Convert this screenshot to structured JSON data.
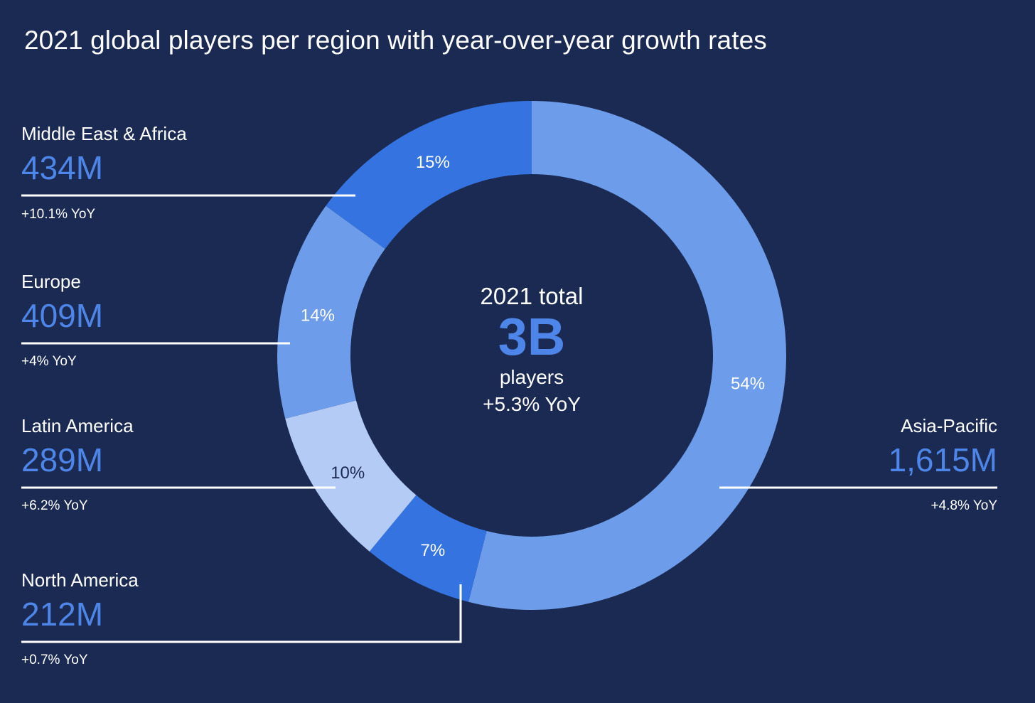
{
  "chart_data": {
    "type": "pie",
    "subtype": "donut",
    "title": "2021 global players per region with year-over-year growth rates",
    "start": "top",
    "direction": "clockwise",
    "center": {
      "label": "2021 total",
      "value": "3B",
      "unit": "players",
      "yoy": "+5.3% YoY"
    },
    "slices": [
      {
        "region": "Asia-Pacific",
        "share": 54,
        "share_label": "54%",
        "players": "1,615M",
        "players_millions": 1615,
        "yoy": "+4.8% YoY",
        "yoy_pct": 4.8,
        "color": "#6d9cea",
        "label_color": "#ffffff"
      },
      {
        "region": "North America",
        "share": 7,
        "share_label": "7%",
        "players": "212M",
        "players_millions": 212,
        "yoy": "+0.7% YoY",
        "yoy_pct": 0.7,
        "color": "#3574e0",
        "label_color": "#ffffff"
      },
      {
        "region": "Latin America",
        "share": 10,
        "share_label": "10%",
        "players": "289M",
        "players_millions": 289,
        "yoy": "+6.2% YoY",
        "yoy_pct": 6.2,
        "color": "#b4cbf5",
        "label_color": "#1b2a52"
      },
      {
        "region": "Europe",
        "share": 14,
        "share_label": "14%",
        "players": "409M",
        "players_millions": 409,
        "yoy": "+4% YoY",
        "yoy_pct": 4,
        "color": "#6d9cea",
        "label_color": "#ffffff"
      },
      {
        "region": "Middle East & Africa",
        "share": 15,
        "share_label": "15%",
        "players": "434M",
        "players_millions": 434,
        "yoy": "+10.1% YoY",
        "yoy_pct": 10.1,
        "color": "#3574e0",
        "label_color": "#ffffff"
      }
    ]
  },
  "colors": {
    "background": "#1b2a52",
    "value_text": "#4d86e8",
    "leader_line": "#ffffff"
  }
}
